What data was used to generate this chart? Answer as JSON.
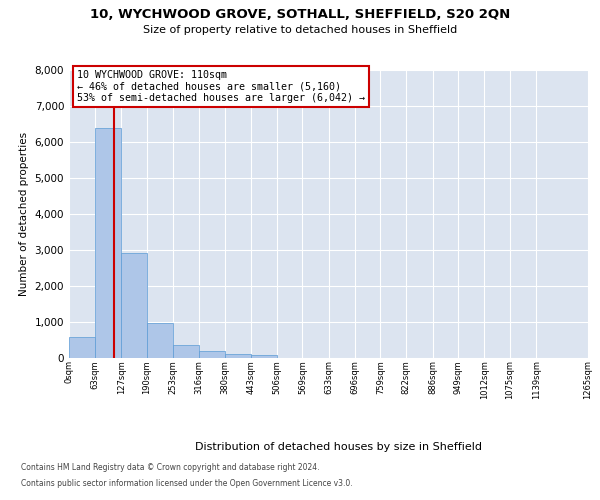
{
  "title_line1": "10, WYCHWOOD GROVE, SOTHALL, SHEFFIELD, S20 2QN",
  "title_line2": "Size of property relative to detached houses in Sheffield",
  "xlabel": "Distribution of detached houses by size in Sheffield",
  "ylabel": "Number of detached properties",
  "bar_values": [
    580,
    6380,
    2910,
    970,
    360,
    170,
    95,
    65,
    0,
    0,
    0,
    0,
    0,
    0,
    0,
    0,
    0,
    0,
    0
  ],
  "bar_edges": [
    0,
    63,
    127,
    190,
    253,
    316,
    380,
    443,
    506,
    569,
    633,
    696,
    759,
    822,
    886,
    949,
    1012,
    1075,
    1139,
    1265
  ],
  "tick_labels": [
    "0sqm",
    "63sqm",
    "127sqm",
    "190sqm",
    "253sqm",
    "316sqm",
    "380sqm",
    "443sqm",
    "506sqm",
    "569sqm",
    "633sqm",
    "696sqm",
    "759sqm",
    "822sqm",
    "886sqm",
    "949sqm",
    "1012sqm",
    "1075sqm",
    "1139sqm",
    "1265sqm"
  ],
  "bar_color": "#aec6e8",
  "bar_edge_color": "#5b9bd5",
  "ylim": [
    0,
    8000
  ],
  "yticks": [
    0,
    1000,
    2000,
    3000,
    4000,
    5000,
    6000,
    7000,
    8000
  ],
  "property_line_x": 110,
  "property_line_color": "#cc0000",
  "annotation_line1": "10 WYCHWOOD GROVE: 110sqm",
  "annotation_line2": "← 46% of detached houses are smaller (5,160)",
  "annotation_line3": "53% of semi-detached houses are larger (6,042) →",
  "annotation_box_color": "#cc0000",
  "bg_color": "#dce4f0",
  "grid_color": "#ffffff",
  "footer_line1": "Contains HM Land Registry data © Crown copyright and database right 2024.",
  "footer_line2": "Contains public sector information licensed under the Open Government Licence v3.0."
}
